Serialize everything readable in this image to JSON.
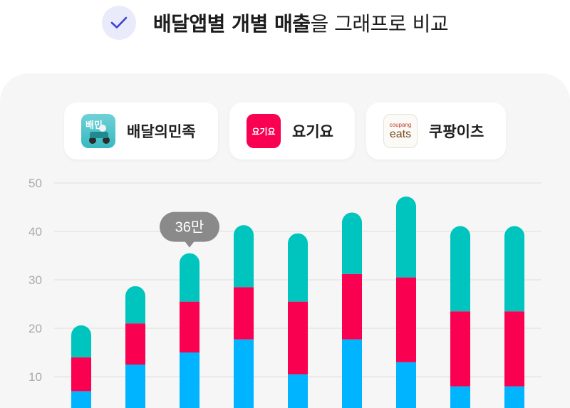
{
  "header": {
    "title_bold": "배달앱별 개별 매출",
    "title_rest": "을 그래프로 비교",
    "icon": "check-icon"
  },
  "legend": {
    "items": [
      {
        "label": "배달의민족",
        "logo": "baemin-logo",
        "logo_text": "배민",
        "color": "#00b8ff"
      },
      {
        "label": "요기요",
        "logo": "yogiyo-logo",
        "logo_text": "요기요",
        "color": "#fa0050"
      },
      {
        "label": "쿠팡이츠",
        "logo": "coupang-eats-logo",
        "logo_text_small": "coupang",
        "logo_text_big": "eats",
        "color": "#00c4c0"
      }
    ]
  },
  "colors": {
    "baemin": "#00b4ff",
    "yogiyo": "#fa0050",
    "coupang": "#00c4be",
    "grid": "#e4e4e4",
    "tooltip": "#8a8a8a",
    "check": "#3d3fd6"
  },
  "chart_data": {
    "type": "bar",
    "stacked": true,
    "categories": [
      "",
      "",
      "",
      "",
      "",
      "",
      "",
      "",
      ""
    ],
    "yticks": [
      10,
      20,
      30,
      40,
      50
    ],
    "ylim": [
      4,
      50
    ],
    "series": [
      {
        "name": "배달의민족",
        "values": [
          7,
          12.5,
          15,
          17.7,
          10.5,
          17.7,
          13,
          8,
          8
        ]
      },
      {
        "name": "요기요",
        "values": [
          7,
          8.5,
          10.5,
          10.8,
          15,
          13.5,
          17.5,
          15.5,
          15.5
        ]
      },
      {
        "name": "쿠팡이츠",
        "values": [
          6.6,
          7.7,
          10,
          12.8,
          14.1,
          12.7,
          16.7,
          17.6,
          17.6
        ]
      }
    ],
    "tooltip": {
      "index": 2,
      "text": "36만"
    },
    "grid": true
  }
}
